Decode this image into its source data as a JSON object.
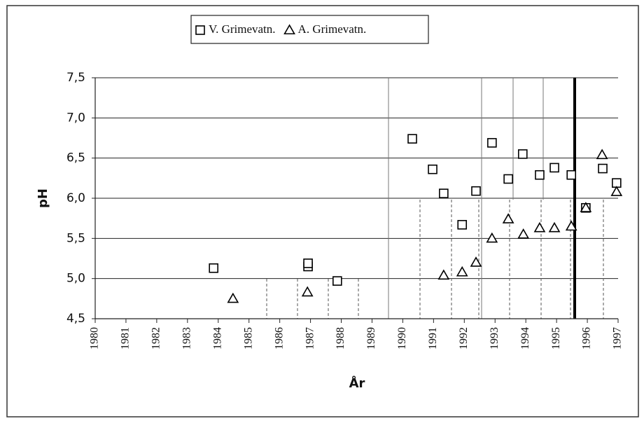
{
  "chart_data": {
    "type": "scatter",
    "xlabel": "År",
    "ylabel": "pH",
    "xlim": [
      1980,
      1997
    ],
    "xticks": [
      1980,
      1981,
      1982,
      1983,
      1984,
      1985,
      1986,
      1987,
      1988,
      1989,
      1990,
      1991,
      1992,
      1993,
      1994,
      1995,
      1996,
      1997
    ],
    "ylim": [
      4.5,
      7.5
    ],
    "yticks": [
      {
        "value": 4.5,
        "label": "4,5"
      },
      {
        "value": 5.0,
        "label": "5,0"
      },
      {
        "value": 5.5,
        "label": "5,5"
      },
      {
        "value": 6.0,
        "label": "6,0"
      },
      {
        "value": 6.5,
        "label": "6,5"
      },
      {
        "value": 7.0,
        "label": "7,0"
      },
      {
        "value": 7.5,
        "label": "7,5"
      }
    ],
    "grid": true,
    "legend": "top",
    "series": [
      {
        "name": "V. Grimevatn.",
        "color": "#000000",
        "marker": "square",
        "x": [
          1983.85,
          1986.92,
          1986.92,
          1987.87,
          1990.31,
          1990.97,
          1991.33,
          1991.93,
          1992.38,
          1992.9,
          1993.43,
          1993.9,
          1994.45,
          1994.93,
          1995.48,
          1995.95,
          1996.5,
          1996.95
        ],
        "values": [
          5.13,
          5.15,
          5.19,
          4.97,
          6.74,
          6.36,
          6.06,
          5.67,
          6.09,
          6.69,
          6.24,
          6.55,
          6.29,
          6.38,
          6.29,
          5.88,
          6.37,
          6.19
        ]
      },
      {
        "name": "A. Grimevatn.",
        "color": "#000000",
        "marker": "triangle",
        "x": [
          1984.48,
          1986.9,
          1991.33,
          1991.93,
          1992.38,
          1992.9,
          1993.43,
          1993.92,
          1994.45,
          1994.93,
          1995.48,
          1995.95,
          1996.48,
          1996.95
        ],
        "values": [
          4.75,
          4.83,
          5.04,
          5.08,
          5.2,
          5.5,
          5.74,
          5.55,
          5.63,
          5.63,
          5.65,
          5.88,
          6.54,
          6.08
        ]
      }
    ]
  }
}
